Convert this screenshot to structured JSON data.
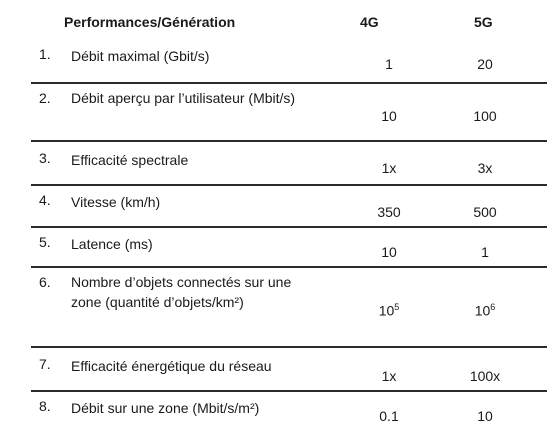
{
  "header": {
    "performance": "Performances/Génération",
    "g4": "4G",
    "g5": "5G"
  },
  "rows": [
    {
      "num": "1.",
      "label": "Débit maximal (Gbit/s)",
      "g4": "1",
      "g5": "20"
    },
    {
      "num": "2.",
      "label": "Débit aperçu par l’utilisateur (Mbit/s)",
      "g4": "10",
      "g5": "100"
    },
    {
      "num": "3.",
      "label": "Efficacité spectrale",
      "g4": "1x",
      "g5": "3x"
    },
    {
      "num": "4.",
      "label": "Vitesse (km/h)",
      "g4": "350",
      "g5": "500"
    },
    {
      "num": "5.",
      "label": "Latence (ms)",
      "g4": "10",
      "g5": "1"
    },
    {
      "num": "6.",
      "label": "Nombre d’objets connectés sur une zone (quantité d’objets/km²)",
      "g4_base": "10",
      "g4_exp": "5",
      "g5_base": "10",
      "g5_exp": "6"
    },
    {
      "num": "7.",
      "label": "Efficacité énergétique du réseau",
      "g4": "1x",
      "g5": "100x"
    },
    {
      "num": "8.",
      "label": "Débit sur une zone (Mbit/s/m²)",
      "g4": "0.1",
      "g5": "10"
    }
  ]
}
